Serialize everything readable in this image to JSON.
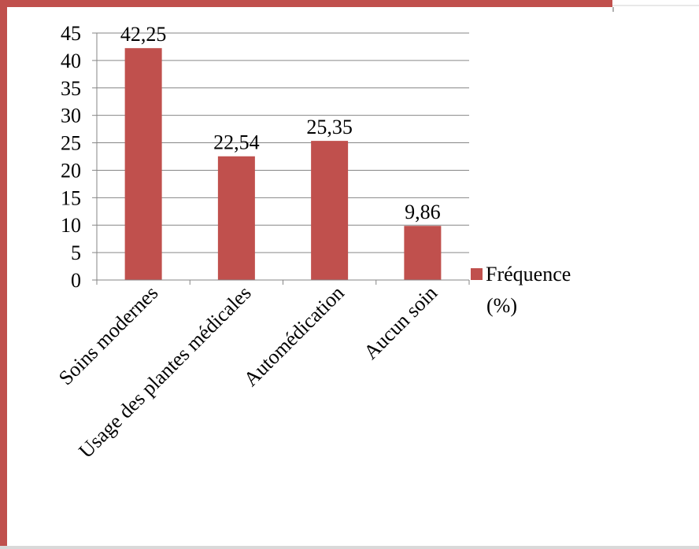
{
  "chart_data": {
    "type": "bar",
    "categories": [
      "Soins modernes",
      "Usage des plantes médicales",
      "Automédication",
      "Aucun soin"
    ],
    "series": [
      {
        "name": "Fréquence (%)",
        "values": [
          42.25,
          22.54,
          25.35,
          9.86
        ],
        "labels": [
          "42,25",
          "22,54",
          "25,35",
          "9,86"
        ]
      }
    ],
    "ylim": [
      0,
      45
    ],
    "yticks": [
      0,
      5,
      10,
      15,
      20,
      25,
      30,
      35,
      40,
      45
    ],
    "legend": {
      "position": "right",
      "lines": [
        "Fréquence",
        "(%)"
      ]
    },
    "grid": true,
    "colors": {
      "bar": "#c0504d",
      "frame_accent": "#c0504d",
      "frame_shadow": "#d9d9d9",
      "gridline": "#868686"
    }
  }
}
